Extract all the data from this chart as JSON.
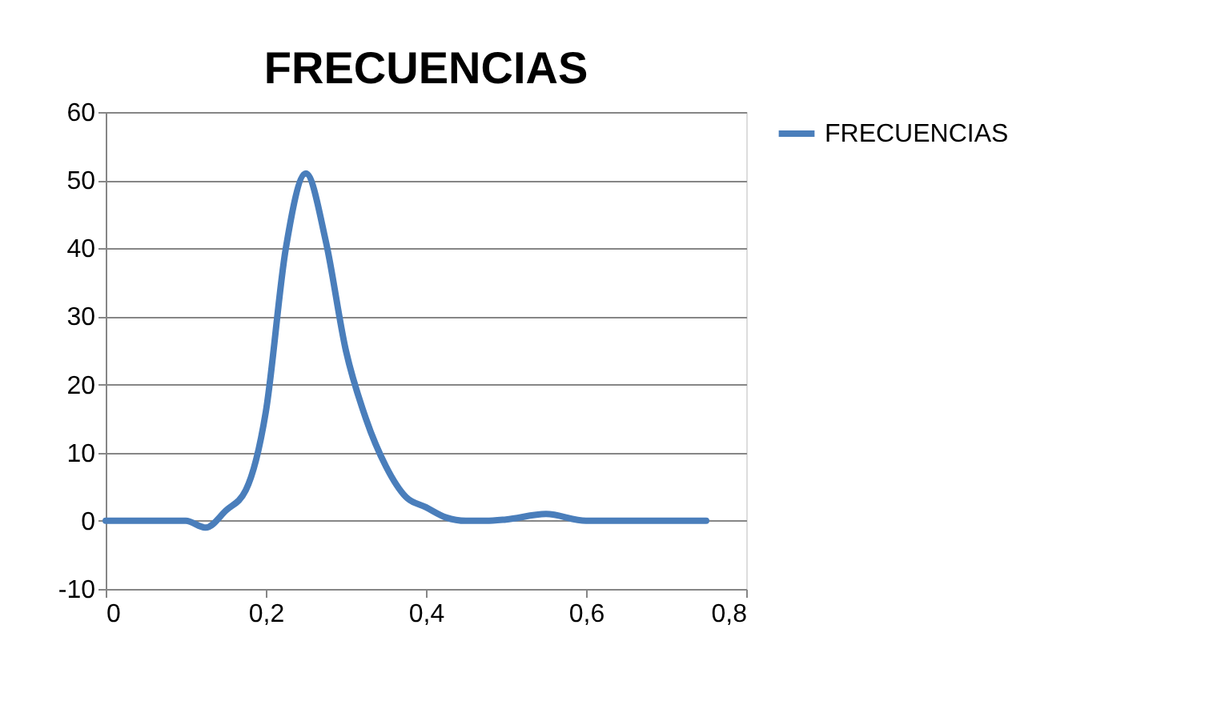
{
  "chart_data": {
    "type": "line",
    "title": "FRECUENCIAS",
    "x": [
      0,
      0.05,
      0.1,
      0.125,
      0.15,
      0.175,
      0.2,
      0.225,
      0.25,
      0.275,
      0.3,
      0.325,
      0.35,
      0.375,
      0.4,
      0.425,
      0.45,
      0.475,
      0.5,
      0.55,
      0.6,
      0.65,
      0.7,
      0.75
    ],
    "series": [
      {
        "name": "FRECUENCIAS",
        "color": "#4a7ebb",
        "values": [
          0,
          0,
          0,
          -1,
          1.5,
          4.5,
          16,
          40,
          51,
          41,
          25,
          15,
          8,
          3.5,
          2,
          0.5,
          0,
          0,
          0.2,
          1,
          0,
          0,
          0,
          0
        ]
      }
    ],
    "xlim": [
      0,
      0.8
    ],
    "xticks": [
      {
        "value": 0,
        "label": "0"
      },
      {
        "value": 0.2,
        "label": "0,2"
      },
      {
        "value": 0.4,
        "label": "0,4"
      },
      {
        "value": 0.6,
        "label": "0,6"
      },
      {
        "value": 0.8,
        "label": "0,8"
      }
    ],
    "ylim": [
      -10,
      60
    ],
    "yticks": [
      -10,
      0,
      10,
      20,
      30,
      40,
      50,
      60
    ],
    "grid": "y",
    "legend": "right",
    "marker": "none",
    "line_style": "solid"
  }
}
